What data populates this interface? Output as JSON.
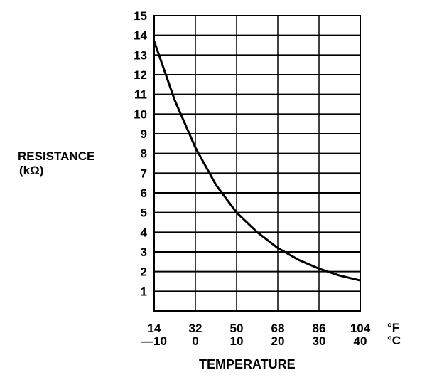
{
  "chart_data": {
    "type": "line",
    "title": "",
    "ylabel": "RESISTANCE",
    "ylabel_unit": "(kΩ)",
    "xlabel": "TEMPERATURE",
    "x_unit_primary": "°F",
    "x_unit_secondary": "°C",
    "xlim": [
      -10,
      40
    ],
    "ylim": [
      0,
      15
    ],
    "grid": true,
    "x_ticks_c": [
      -10,
      0,
      10,
      20,
      30,
      40
    ],
    "x_tick_labels_f": [
      "14",
      "32",
      "50",
      "68",
      "86",
      "104"
    ],
    "x_tick_labels_c": [
      "—10",
      "0",
      "10",
      "20",
      "30",
      "40"
    ],
    "y_ticks": [
      1,
      2,
      3,
      4,
      5,
      6,
      7,
      8,
      9,
      10,
      11,
      12,
      13,
      14,
      15
    ],
    "series": [
      {
        "name": "Resistance",
        "x": [
          -10,
          -5,
          0,
          5,
          10,
          15,
          20,
          25,
          30,
          35,
          40
        ],
        "y": [
          13.7,
          10.7,
          8.3,
          6.4,
          5.0,
          4.0,
          3.2,
          2.6,
          2.15,
          1.8,
          1.55
        ]
      }
    ]
  }
}
